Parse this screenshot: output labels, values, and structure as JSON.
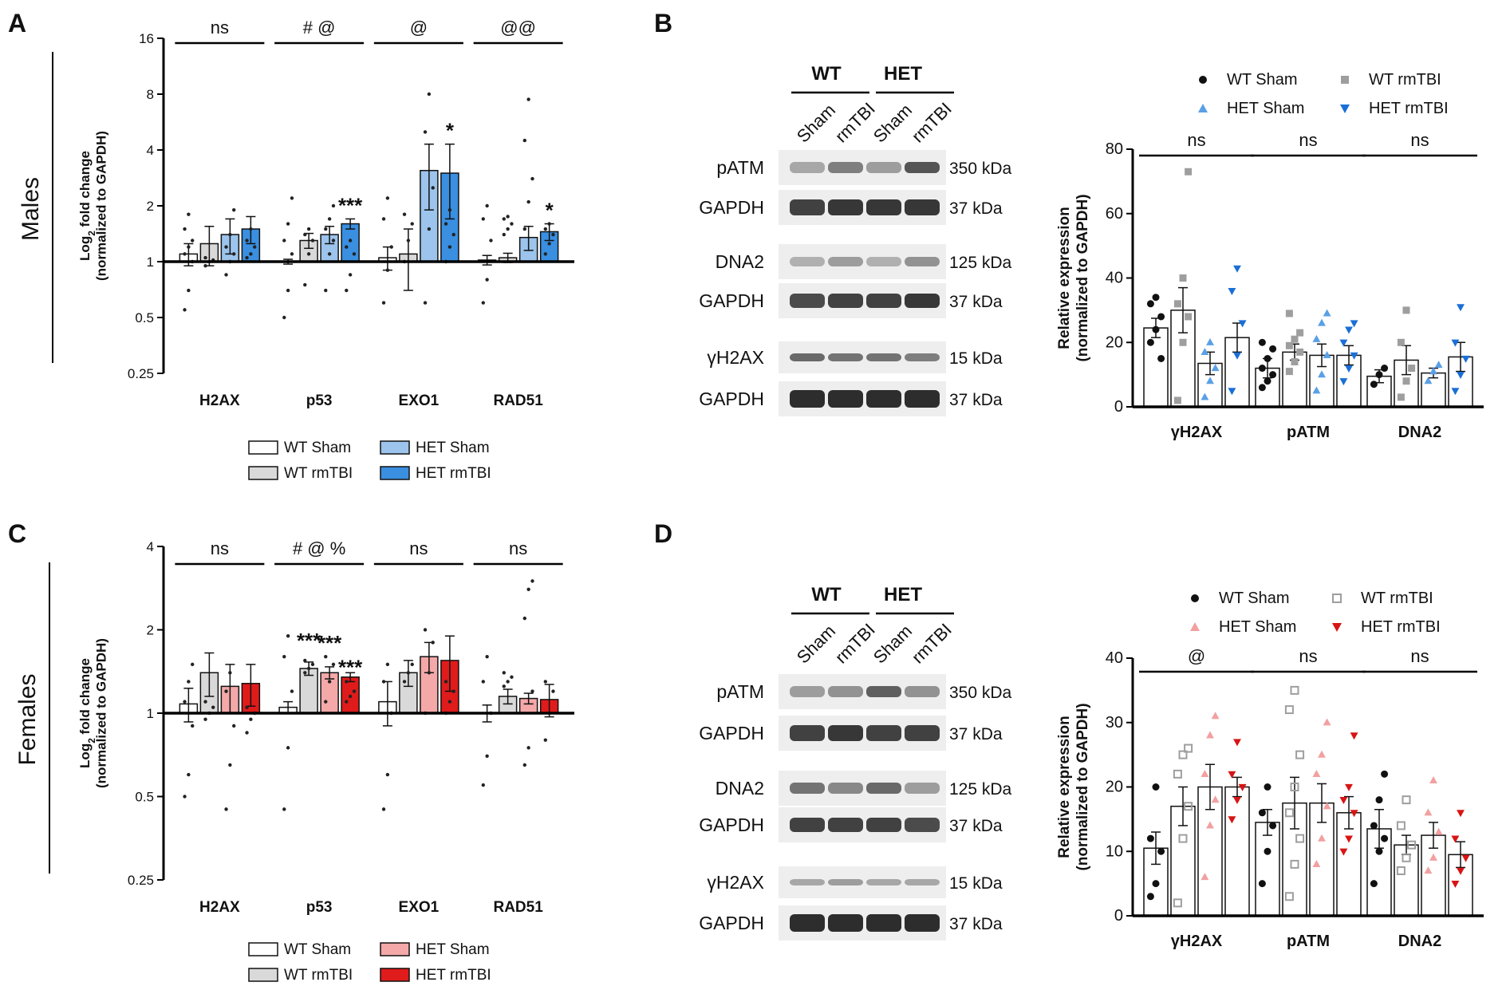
{
  "colors": {
    "wt_sham": "#ffffff",
    "wt_rmtbi": "#d9d9d9",
    "het_sham_male": "#9cc4ec",
    "het_rmtbi_male": "#3a8fe0",
    "het_sham_female": "#f4a8a8",
    "het_rmtbi_female": "#e01b1b",
    "gray_point": "#9e9e9e",
    "blue_light_point": "#5aa0e6",
    "blue_dark_point": "#1a6fd6",
    "pink_point": "#f2a0a0",
    "red_point": "#d81414"
  },
  "panels": {
    "A": {
      "letter": "A",
      "row_label": "Males"
    },
    "B": {
      "letter": "B"
    },
    "C": {
      "letter": "C",
      "row_label": "Females"
    },
    "D": {
      "letter": "D"
    }
  },
  "legend_qpcr_male": {
    "items": [
      "WT  Sham",
      "WT rmTBI",
      "HET  Sham",
      "HET rmTBI"
    ]
  },
  "legend_qpcr_female": {
    "items": [
      "WT  Sham",
      "WT rmTBI",
      "HET  Sham",
      "HET rmTBI"
    ]
  },
  "legend_wb_male": {
    "items": [
      "WT Sham",
      "WT rmTBI",
      "HET Sham",
      "HET rmTBI"
    ]
  },
  "legend_wb_female": {
    "items": [
      "WT Sham",
      "WT rmTBI",
      "HET Sham",
      "HET rmTBI"
    ]
  },
  "blot_B": {
    "group_labels": [
      "WT",
      "HET"
    ],
    "lane_labels": [
      "Sham",
      "rmTBI",
      "Sham",
      "rmTBI"
    ],
    "proteins": [
      "pATM",
      "GAPDH",
      "DNA2",
      "GAPDH",
      "γH2AX",
      "GAPDH"
    ],
    "sizes": [
      "350 kDa",
      "37 kDa",
      "125 kDa",
      "37 kDa",
      "15 kDa",
      "37 kDa"
    ]
  },
  "blot_D": {
    "group_labels": [
      "WT",
      "HET"
    ],
    "lane_labels": [
      "Sham",
      "rmTBI",
      "Sham",
      "rmTBI"
    ],
    "proteins": [
      "pATM",
      "GAPDH",
      "DNA2",
      "GAPDH",
      "γH2AX",
      "GAPDH"
    ],
    "sizes": [
      "350 kDa",
      "37 kDa",
      "125 kDa",
      "37 kDa",
      "15 kDa",
      "37 kDa"
    ]
  },
  "chart_data": [
    {
      "id": "A",
      "type": "bar",
      "title": "",
      "ylabel": "Log2 fold change (normalized to GAPDH)",
      "yscale": "log2",
      "ylim": [
        0.25,
        16
      ],
      "yticks": [
        "16",
        "8",
        "4",
        "2",
        "1",
        "0.5",
        "0.25"
      ],
      "categories": [
        "H2AX",
        "p53",
        "EXO1",
        "RAD51"
      ],
      "series": [
        {
          "name": "WT Sham",
          "values": [
            1.1,
            1.0,
            1.05,
            1.02
          ],
          "sem": [
            0.15,
            0.03,
            0.15,
            0.06
          ]
        },
        {
          "name": "WT rmTBI",
          "values": [
            1.25,
            1.3,
            1.1,
            1.05
          ],
          "sem": [
            0.3,
            0.12,
            0.4,
            0.06
          ]
        },
        {
          "name": "HET Sham",
          "values": [
            1.4,
            1.4,
            3.1,
            1.35
          ],
          "sem": [
            0.3,
            0.15,
            1.2,
            0.2
          ]
        },
        {
          "name": "HET rmTBI",
          "values": [
            1.5,
            1.6,
            3.0,
            1.45
          ],
          "sem": [
            0.25,
            0.1,
            1.3,
            0.15
          ]
        }
      ],
      "points": [
        [
          [
            0.55,
            0.7,
            1.0,
            1.1,
            1.2,
            1.3,
            1.5,
            1.8
          ],
          [
            0.95,
            1.0,
            1.02,
            1.05
          ],
          [
            0.85,
            1.0,
            1.1,
            1.2,
            1.4,
            1.9
          ],
          [
            1.05,
            1.1,
            1.2,
            1.3,
            1.5
          ]
        ],
        [
          [
            0.5,
            0.7,
            1.1,
            1.3,
            1.6,
            2.2
          ],
          [
            0.75,
            1.1,
            1.3,
            1.4,
            1.5
          ],
          [
            0.7,
            1.1,
            1.3,
            1.5,
            1.7,
            2.0
          ],
          [
            0.7,
            0.85,
            1.1,
            1.2,
            1.3
          ]
        ],
        [
          [
            0.6,
            0.9,
            1.2,
            1.7,
            2.2
          ],
          [
            1.0,
            1.3,
            1.6,
            1.8
          ],
          [
            0.6,
            1.5,
            2.5,
            5.0,
            8.0
          ],
          [
            1.0,
            1.2,
            1.4,
            1.6,
            1.9
          ]
        ],
        [
          [
            0.6,
            0.8,
            1.3,
            1.7,
            2.0
          ],
          [
            1.4,
            1.5,
            1.6,
            1.7,
            1.75
          ],
          [
            1.5,
            2.1,
            2.8,
            4.5,
            7.5
          ],
          [
            1.1,
            1.25,
            1.4,
            1.5,
            1.6
          ]
        ]
      ],
      "significance": {
        "group": [
          "ns",
          "# @",
          "@",
          "@@"
        ],
        "bar_stars": [
          {
            "cat": 1,
            "series": 3,
            "text": "***"
          },
          {
            "cat": 2,
            "series": 3,
            "text": "*"
          },
          {
            "cat": 3,
            "series": 3,
            "text": "*"
          }
        ]
      }
    },
    {
      "id": "B_chart",
      "type": "bar",
      "ylabel": "Relative expression (normalized to GAPDH)",
      "ylim": [
        0,
        80
      ],
      "yticks": [
        "0",
        "20",
        "40",
        "60",
        "80"
      ],
      "categories": [
        "γH2AX",
        "pATM",
        "DNA2"
      ],
      "series": [
        {
          "name": "WT Sham",
          "values": [
            24.5,
            12.0,
            9.5
          ],
          "sem": [
            3.0,
            3.0,
            2.0
          ]
        },
        {
          "name": "WT rmTBI",
          "values": [
            30.0,
            17.0,
            14.5
          ],
          "sem": [
            7.0,
            2.5,
            4.5
          ]
        },
        {
          "name": "HET Sham",
          "values": [
            13.5,
            16.0,
            10.5
          ],
          "sem": [
            3.5,
            3.5,
            1.5
          ]
        },
        {
          "name": "HET rmTBI",
          "values": [
            21.5,
            16.0,
            15.5
          ],
          "sem": [
            4.5,
            3.0,
            4.5
          ]
        }
      ],
      "points": [
        [
          [
            20,
            24,
            28,
            32,
            34,
            15
          ],
          [
            2,
            20,
            28,
            32,
            40,
            73
          ],
          [
            3,
            8,
            12,
            17,
            20
          ],
          [
            5,
            16,
            26,
            36,
            43
          ]
        ],
        [
          [
            6,
            8,
            10,
            12,
            15,
            18,
            20
          ],
          [
            11,
            14,
            17,
            19,
            21,
            23,
            29
          ],
          [
            5,
            10,
            16,
            21,
            26,
            29
          ],
          [
            8,
            12,
            16,
            20,
            24,
            26
          ]
        ],
        [
          [
            7,
            10,
            12
          ],
          [
            3,
            8,
            12,
            20,
            30
          ],
          [
            8,
            11,
            13
          ],
          [
            5,
            10,
            15,
            20,
            31
          ]
        ]
      ],
      "significance": {
        "group": [
          "ns",
          "ns",
          "ns"
        ]
      }
    },
    {
      "id": "C",
      "type": "bar",
      "ylabel": "Log2 fold change (normalized to GAPDH)",
      "yscale": "log2",
      "ylim": [
        0.25,
        4
      ],
      "yticks": [
        "4",
        "2",
        "1",
        "0.5",
        "0.25"
      ],
      "categories": [
        "H2AX",
        "p53",
        "EXO1",
        "RAD51"
      ],
      "series": [
        {
          "name": "WT Sham",
          "values": [
            1.08,
            1.05,
            1.1,
            1.0
          ],
          "sem": [
            0.15,
            0.05,
            0.2,
            0.07
          ]
        },
        {
          "name": "WT rmTBI",
          "values": [
            1.4,
            1.45,
            1.4,
            1.15
          ],
          "sem": [
            0.25,
            0.08,
            0.15,
            0.07
          ]
        },
        {
          "name": "HET Sham",
          "values": [
            1.25,
            1.4,
            1.6,
            1.13
          ],
          "sem": [
            0.25,
            0.07,
            0.2,
            0.05
          ]
        },
        {
          "name": "HET rmTBI",
          "values": [
            1.28,
            1.35,
            1.55,
            1.12
          ],
          "sem": [
            0.22,
            0.05,
            0.35,
            0.15
          ]
        }
      ],
      "points": [
        [
          [
            0.5,
            0.6,
            0.9,
            1.1,
            1.3,
            1.5
          ],
          [
            0.95,
            1.0,
            1.05,
            1.1
          ],
          [
            0.45,
            0.65,
            0.9,
            1.2,
            1.4
          ],
          [
            0.85,
            0.95,
            1.0,
            1.05
          ]
        ],
        [
          [
            0.45,
            0.75,
            1.2,
            1.6,
            1.9
          ],
          [
            1.4,
            1.45,
            1.5,
            1.55
          ],
          [
            1.1,
            1.3,
            1.5,
            1.6
          ],
          [
            1.1,
            1.15,
            1.2,
            1.3
          ]
        ],
        [
          [
            0.45,
            0.6,
            1.0,
            1.3,
            1.5
          ],
          [
            1.3,
            1.4,
            1.5
          ],
          [
            1.0,
            1.4,
            1.8,
            2.0
          ],
          [
            1.0,
            1.1,
            1.2,
            1.3
          ]
        ],
        [
          [
            0.55,
            0.7,
            1.0,
            1.3,
            1.6
          ],
          [
            1.25,
            1.3,
            1.35,
            1.4
          ],
          [
            0.65,
            0.75,
            1.2,
            2.2,
            2.8,
            3.0
          ],
          [
            0.8,
            1.0,
            1.2,
            1.3
          ]
        ]
      ],
      "significance": {
        "group": [
          "ns",
          "# @ %",
          "ns",
          "ns"
        ],
        "bar_stars": [
          {
            "cat": 1,
            "series": 1,
            "text": "***"
          },
          {
            "cat": 1,
            "series": 2,
            "text": "***"
          },
          {
            "cat": 1,
            "series": 3,
            "text": "***"
          }
        ]
      }
    },
    {
      "id": "D_chart",
      "type": "bar",
      "ylabel": "Relative expression (normalized to GAPDH)",
      "ylim": [
        0,
        40
      ],
      "yticks": [
        "0",
        "10",
        "20",
        "30",
        "40"
      ],
      "categories": [
        "γH2AX",
        "pATM",
        "DNA2"
      ],
      "series": [
        {
          "name": "WT Sham",
          "values": [
            10.5,
            14.5,
            13.5
          ],
          "sem": [
            2.5,
            2.0,
            3.0
          ]
        },
        {
          "name": "WT rmTBI",
          "values": [
            17.0,
            17.5,
            11.0
          ],
          "sem": [
            3.0,
            4.0,
            1.5
          ]
        },
        {
          "name": "HET Sham",
          "values": [
            20.0,
            17.5,
            12.5
          ],
          "sem": [
            3.5,
            3.0,
            2.0
          ]
        },
        {
          "name": "HET rmTBI",
          "values": [
            20.0,
            16.0,
            9.5
          ],
          "sem": [
            1.5,
            2.5,
            2.0
          ]
        }
      ],
      "points": [
        [
          [
            3,
            5,
            10,
            12,
            20
          ],
          [
            2,
            12,
            17,
            22,
            25,
            26
          ],
          [
            6,
            14,
            18,
            22,
            28,
            31
          ],
          [
            15,
            18,
            20,
            22,
            27
          ]
        ],
        [
          [
            5,
            10,
            14,
            16,
            20
          ],
          [
            3,
            8,
            12,
            16,
            20,
            25,
            32,
            35
          ],
          [
            8,
            12,
            17,
            22,
            25,
            30
          ],
          [
            10,
            12,
            16,
            18,
            20,
            28
          ]
        ],
        [
          [
            5,
            10,
            12,
            14,
            18,
            22
          ],
          [
            7,
            9,
            11,
            14,
            18
          ],
          [
            7,
            9,
            13,
            16,
            21
          ],
          [
            5,
            7,
            9,
            12,
            16
          ]
        ]
      ],
      "significance": {
        "group": [
          "@",
          "ns",
          "ns"
        ]
      }
    }
  ]
}
